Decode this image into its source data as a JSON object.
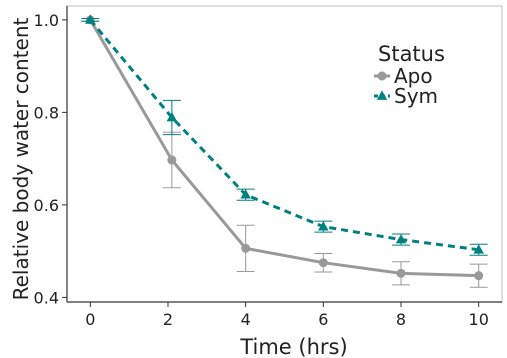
{
  "chart_data": {
    "type": "line",
    "title": "",
    "xlabel": "Time (hrs)",
    "ylabel": "Relative body water content",
    "xlim": [
      -0.6,
      10.6
    ],
    "ylim": [
      0.39,
      1.03
    ],
    "x_ticks": [
      0,
      2,
      4,
      6,
      8,
      10
    ],
    "x_tick_labels": [
      "0",
      "2",
      "4",
      "6",
      "8",
      "10"
    ],
    "y_ticks": [
      0.4,
      0.6,
      0.8,
      1.0
    ],
    "y_tick_labels": [
      "0.4",
      "0.6",
      "0.8",
      "1.0"
    ],
    "grid": false,
    "legend": {
      "title": "Status",
      "placement": "top-right",
      "entries": [
        "Apo",
        "Sym"
      ]
    },
    "series": [
      {
        "name": "Apo",
        "color": "#999999",
        "line_style": "solid",
        "marker": "circle",
        "x": [
          0,
          2.1,
          4,
          6,
          8,
          10
        ],
        "y": [
          1.0,
          0.697,
          0.506,
          0.475,
          0.452,
          0.447
        ],
        "err": [
          0.003,
          0.06,
          0.05,
          0.02,
          0.025,
          0.025
        ]
      },
      {
        "name": "Sym",
        "color": "#008080",
        "line_style": "dashed",
        "marker": "triangle",
        "x": [
          0,
          2.1,
          4,
          6,
          8,
          10
        ],
        "y": [
          1.0,
          0.789,
          0.622,
          0.553,
          0.525,
          0.503
        ],
        "err": [
          0.003,
          0.037,
          0.012,
          0.012,
          0.012,
          0.012
        ]
      }
    ]
  }
}
